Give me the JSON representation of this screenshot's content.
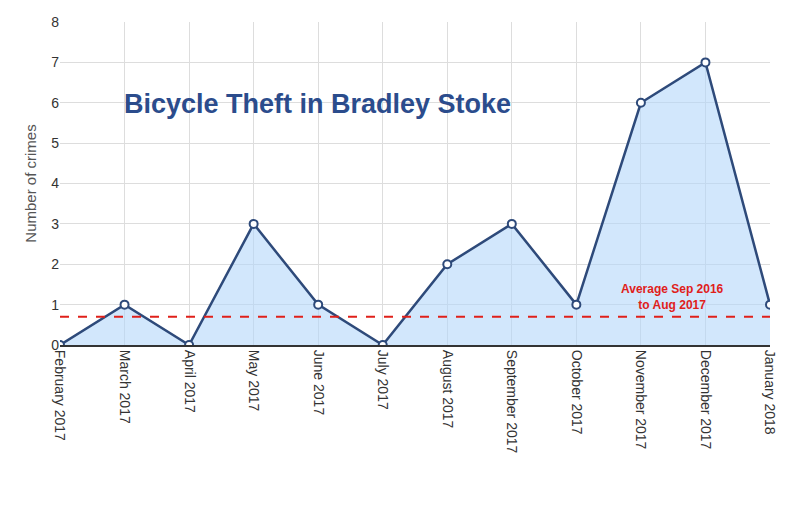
{
  "chart_data": {
    "type": "line",
    "title": "Bicycle Theft in Bradley Stoke",
    "y_label": "Number of crimes",
    "categories": [
      "February 2017",
      "March 2017",
      "April 2017",
      "May 2017",
      "June 2017",
      "July 2017",
      "August 2017",
      "September 2017",
      "October 2017",
      "November 2017",
      "December 2017",
      "January 2018"
    ],
    "values": [
      0,
      1,
      0,
      3,
      1,
      0,
      2,
      3,
      1,
      6,
      7,
      1
    ],
    "color": "#2e4a7a",
    "marker": "circle",
    "ylim": [
      0,
      8
    ],
    "yticks": [
      0,
      1,
      2,
      3,
      4,
      5,
      6,
      7,
      8
    ],
    "grid": true,
    "average_line": {
      "value": 0.7,
      "label": [
        "Average Sep 2016",
        "to Aug 2017"
      ],
      "color": "#e0201a",
      "line_style": "dashed"
    }
  }
}
